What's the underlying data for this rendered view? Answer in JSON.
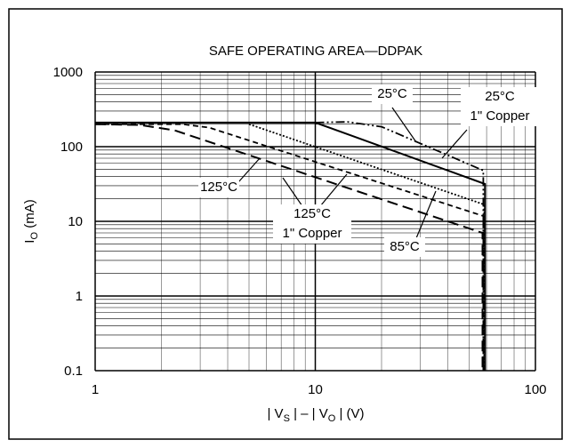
{
  "chart_data": {
    "type": "line",
    "title": "SAFE OPERATING AREA—DDPAK",
    "xlabel": {
      "pre": "| V",
      "sub1": "S",
      "mid": " | – | V",
      "sub2": "O",
      "post": " | (V)"
    },
    "ylabel": {
      "main": "I",
      "sub": "O",
      "post": " (mA)"
    },
    "xscale": "log",
    "yscale": "log",
    "grid": true,
    "color": "#000000",
    "xlim": [
      1,
      100
    ],
    "ylim": [
      0.1,
      1000
    ],
    "xticks": [
      1,
      10,
      100
    ],
    "yticks": [
      0.1,
      1,
      10,
      100,
      1000
    ],
    "series": [
      {
        "dash": "none",
        "width": 2,
        "x": [
          1,
          10,
          59,
          59
        ],
        "values": [
          210,
          210,
          31.6,
          0.1
        ]
      },
      {
        "dash": "10 3 2 3 2 3",
        "width": 1.8,
        "x": [
          10,
          14,
          20,
          58,
          58
        ],
        "values": [
          210,
          215,
          185,
          48,
          0.1
        ]
      },
      {
        "dash": "2 2",
        "width": 1.8,
        "x": [
          5,
          58.5,
          58.5
        ],
        "values": [
          200,
          16.8,
          0.1
        ]
      },
      {
        "dash": "6 4",
        "width": 1.8,
        "x": [
          1,
          2.5,
          3.3,
          58,
          58
        ],
        "values": [
          200,
          200,
          180,
          11.8,
          0.1
        ]
      },
      {
        "dash": "12 6",
        "width": 2,
        "x": [
          1,
          1.6,
          2.3,
          57.5,
          57.5
        ],
        "values": [
          200,
          195,
          165,
          7,
          0.1
        ]
      }
    ],
    "annotations": [
      {
        "lines": [
          "25°C"
        ]
      },
      {
        "lines": [
          "25°C",
          "1\" Copper"
        ]
      },
      {
        "lines": [
          "125°C"
        ]
      },
      {
        "lines": [
          "125°C",
          "1\" Copper"
        ]
      },
      {
        "lines": [
          "85°C"
        ]
      }
    ]
  }
}
